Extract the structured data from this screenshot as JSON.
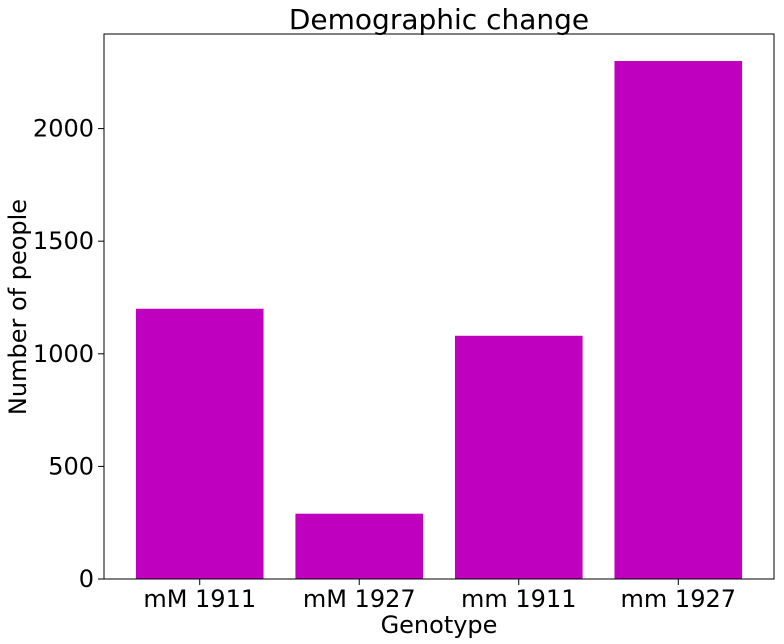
{
  "chart_data": {
    "type": "bar",
    "title": "Demographic change",
    "xlabel": "Genotype",
    "ylabel": "Number of people",
    "categories": [
      "mM 1911",
      "mM 1927",
      "mm 1911",
      "mm 1927"
    ],
    "values": [
      1200,
      290,
      1080,
      2300
    ],
    "ylim": [
      0,
      2420
    ],
    "yticks": [
      0,
      500,
      1000,
      1500,
      2000
    ],
    "grid": false,
    "bar_color": "#bf00bf"
  }
}
